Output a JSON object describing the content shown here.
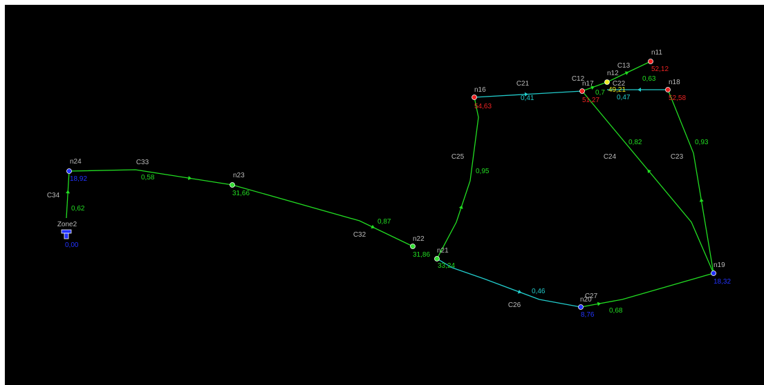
{
  "colors": {
    "background": "#000000",
    "pipe_green": "#22dd22",
    "pipe_cyan": "#22cccc",
    "node_blue": "#2233ff",
    "node_green": "#33dd33",
    "node_red": "#ee2222",
    "node_yellow": "#eeee22",
    "label_gray": "#bbbbbb",
    "value_blue": "#2233ff",
    "value_red": "#ee2222",
    "value_green": "#22dd22",
    "value_yellow": "#eeee22",
    "value_cyan": "#22cccc"
  },
  "reservoir": {
    "name": "Zone2",
    "value": "0,00",
    "icon": "reservoir-icon"
  },
  "nodes": [
    {
      "id": "n24",
      "name": "n24",
      "value": "18,92",
      "color": "blue"
    },
    {
      "id": "n23",
      "name": "n23",
      "value": "31,66",
      "color": "green"
    },
    {
      "id": "n22",
      "name": "n22",
      "value": "31,86",
      "color": "green"
    },
    {
      "id": "n21",
      "name": "n21",
      "value": "33,24",
      "color": "green"
    },
    {
      "id": "n20",
      "name": "n20",
      "value": "8,76",
      "color": "blue"
    },
    {
      "id": "n19",
      "name": "n19",
      "value": "18,32",
      "color": "blue"
    },
    {
      "id": "n16",
      "name": "n16",
      "value": "54,63",
      "color": "red"
    },
    {
      "id": "n17",
      "name": "n17",
      "value": "51,27",
      "color": "red"
    },
    {
      "id": "n12",
      "name": "n12",
      "value": "49,21",
      "color": "yellow"
    },
    {
      "id": "n11",
      "name": "n11",
      "value": "52,12",
      "color": "red"
    },
    {
      "id": "n18",
      "name": "n18",
      "value": "52,58",
      "color": "red"
    }
  ],
  "pipes": [
    {
      "id": "C34",
      "name": "C34",
      "flow": "0,62",
      "color": "green"
    },
    {
      "id": "C33",
      "name": "C33",
      "flow": "0,58",
      "color": "green"
    },
    {
      "id": "C32",
      "name": "C32",
      "flow": "0,87",
      "color": "green"
    },
    {
      "id": "C25",
      "name": "C25",
      "flow": "0,95",
      "color": "green"
    },
    {
      "id": "C21",
      "name": "C21",
      "flow": "0,41",
      "color": "cyan"
    },
    {
      "id": "C12",
      "name": "C12",
      "flow": "0,7",
      "color": "green"
    },
    {
      "id": "C13",
      "name": "C13",
      "flow": "0,63",
      "color": "green"
    },
    {
      "id": "C22",
      "name": "C22",
      "flow": "0,47",
      "color": "cyan"
    },
    {
      "id": "C24",
      "name": "C24",
      "flow": "0,82",
      "color": "green"
    },
    {
      "id": "C23",
      "name": "C23",
      "flow": "0,93",
      "color": "green"
    },
    {
      "id": "C26",
      "name": "C26",
      "flow": "0,46",
      "color": "cyan"
    },
    {
      "id": "C27",
      "name": "C27",
      "flow": "0,68",
      "color": "green"
    }
  ]
}
